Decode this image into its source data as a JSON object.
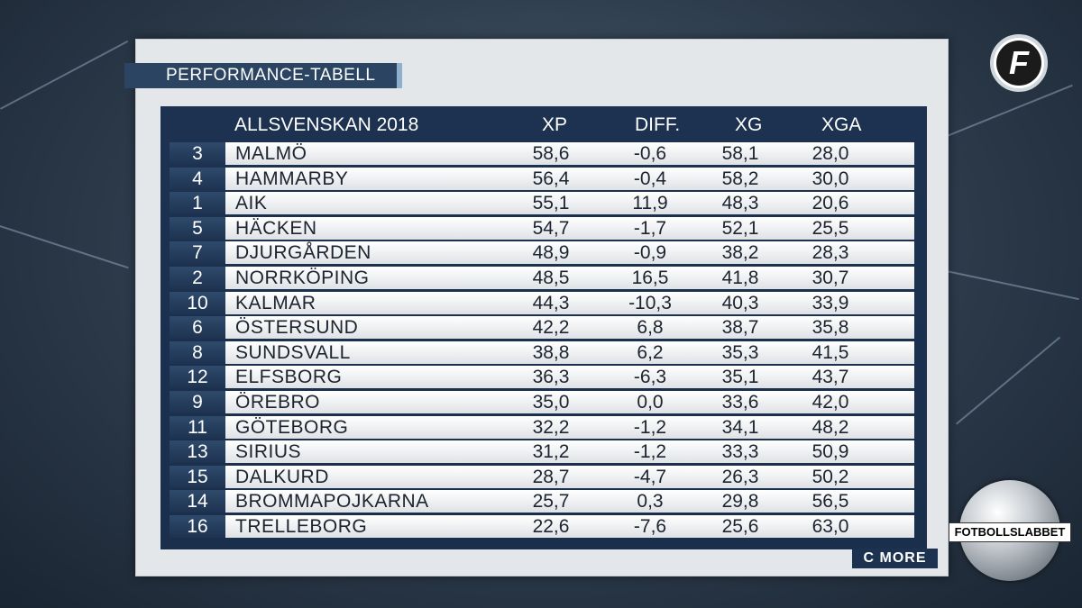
{
  "title": "PERFORMANCE-TABELL",
  "header": {
    "league": "ALLSVENSKAN 2018",
    "xp": "XP",
    "diff": "DIFF.",
    "xg": "XG",
    "xga": "XGA"
  },
  "rows": [
    {
      "rank": "3",
      "team": "MALMÖ",
      "xp": "58,6",
      "diff": "-0,6",
      "xg": "58,1",
      "xga": "28,0"
    },
    {
      "rank": "4",
      "team": "HAMMARBY",
      "xp": "56,4",
      "diff": "-0,4",
      "xg": "58,2",
      "xga": "30,0"
    },
    {
      "rank": "1",
      "team": "AIK",
      "xp": "55,1",
      "diff": "11,9",
      "xg": "48,3",
      "xga": "20,6"
    },
    {
      "rank": "5",
      "team": "HÄCKEN",
      "xp": "54,7",
      "diff": "-1,7",
      "xg": "52,1",
      "xga": "25,5"
    },
    {
      "rank": "7",
      "team": "DJURGÅRDEN",
      "xp": "48,9",
      "diff": "-0,9",
      "xg": "38,2",
      "xga": "28,3"
    },
    {
      "rank": "2",
      "team": "NORRKÖPING",
      "xp": "48,5",
      "diff": "16,5",
      "xg": "41,8",
      "xga": "30,7"
    },
    {
      "rank": "10",
      "team": "KALMAR",
      "xp": "44,3",
      "diff": "-10,3",
      "xg": "40,3",
      "xga": "33,9"
    },
    {
      "rank": "6",
      "team": "ÖSTERSUND",
      "xp": "42,2",
      "diff": "6,8",
      "xg": "38,7",
      "xga": "35,8"
    },
    {
      "rank": "8",
      "team": "SUNDSVALL",
      "xp": "38,8",
      "diff": "6,2",
      "xg": "35,3",
      "xga": "41,5"
    },
    {
      "rank": "12",
      "team": "ELFSBORG",
      "xp": "36,3",
      "diff": "-6,3",
      "xg": "35,1",
      "xga": "43,7"
    },
    {
      "rank": "9",
      "team": "ÖREBRO",
      "xp": "35,0",
      "diff": "0,0",
      "xg": "33,6",
      "xga": "42,0"
    },
    {
      "rank": "11",
      "team": "GÖTEBORG",
      "xp": "32,2",
      "diff": "-1,2",
      "xg": "34,1",
      "xga": "48,2"
    },
    {
      "rank": "13",
      "team": "SIRIUS",
      "xp": "31,2",
      "diff": "-1,2",
      "xg": "33,3",
      "xga": "50,9"
    },
    {
      "rank": "15",
      "team": "DALKURD",
      "xp": "28,7",
      "diff": "-4,7",
      "xg": "26,3",
      "xga": "50,2"
    },
    {
      "rank": "14",
      "team": "BROMMAPOJKARNA",
      "xp": "25,7",
      "diff": "0,3",
      "xg": "29,8",
      "xga": "56,5"
    },
    {
      "rank": "16",
      "team": "TRELLEBORG",
      "xp": "22,6",
      "diff": "-7,6",
      "xg": "25,6",
      "xga": "63,0"
    }
  ],
  "logo_letter": "F",
  "sponsor": "C MORE",
  "show_name": "FOTBOLLSLABBET",
  "icons": [
    "fotbollskanalen-logo-icon",
    "football-icon"
  ]
}
